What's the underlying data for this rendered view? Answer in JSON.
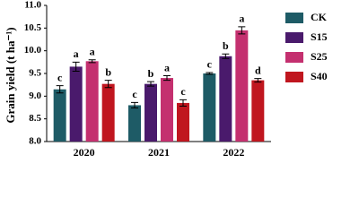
{
  "chart_data": {
    "type": "bar",
    "y_label": "Grain yield (t ha⁻¹)",
    "categories": [
      "2020",
      "2021",
      "2022"
    ],
    "series": [
      {
        "name": "CK",
        "color": "#1e5b66",
        "values": [
          9.15,
          8.8,
          9.5
        ],
        "errors": [
          0.08,
          0.06,
          0.02
        ],
        "labels": [
          "c",
          "c",
          "c"
        ]
      },
      {
        "name": "S15",
        "color": "#4a1a6c",
        "values": [
          9.65,
          9.27,
          9.88
        ],
        "errors": [
          0.1,
          0.05,
          0.05
        ],
        "labels": [
          "a",
          "b",
          "b"
        ]
      },
      {
        "name": "S25",
        "color": "#c4306f",
        "values": [
          9.77,
          9.4,
          10.45
        ],
        "errors": [
          0.03,
          0.05,
          0.08
        ],
        "labels": [
          "a",
          "a",
          "a"
        ]
      },
      {
        "name": "S40",
        "color": "#c0161f",
        "values": [
          9.27,
          8.85,
          9.35
        ],
        "errors": [
          0.08,
          0.07,
          0.04
        ],
        "labels": [
          "b",
          "c",
          "d"
        ]
      }
    ],
    "ylim": [
      8.0,
      11.0
    ],
    "yticks": [
      {
        "value": 8,
        "label": "8.0"
      },
      {
        "value": 8.5,
        "label": "8.5"
      },
      {
        "value": 9,
        "label": "9.0"
      },
      {
        "value": 9.5,
        "label": "9.5"
      },
      {
        "value": 10,
        "label": "10.0"
      },
      {
        "value": 10.5,
        "label": "10.5"
      },
      {
        "value": 11,
        "label": "11.0"
      }
    ],
    "legend": "right"
  }
}
